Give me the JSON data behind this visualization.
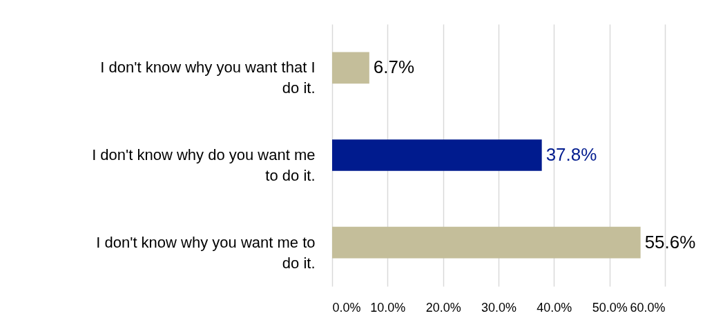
{
  "chart_data": {
    "type": "bar",
    "orientation": "horizontal",
    "categories": [
      "I don't know why you want that I do it.",
      "I don't know why do you want me to do it.",
      "I don't know why you want me to do it."
    ],
    "values": [
      6.7,
      37.8,
      55.6
    ],
    "colors": [
      "#c4be9a",
      "#001b8e",
      "#c4be9a"
    ],
    "value_labels": [
      "6.7%",
      "37.8%",
      "55.6%"
    ],
    "xlim": [
      0,
      60
    ],
    "xticks": [
      {
        "value": 0,
        "label": "0.0%"
      },
      {
        "value": 10,
        "label": "10.0%"
      },
      {
        "value": 20,
        "label": "20.0%"
      },
      {
        "value": 30,
        "label": "30.0%"
      },
      {
        "value": 40,
        "label": "40.0%"
      },
      {
        "value": 50,
        "label": "50.0%"
      },
      {
        "value": 60,
        "label": "60.0%"
      }
    ],
    "grid": "x"
  }
}
